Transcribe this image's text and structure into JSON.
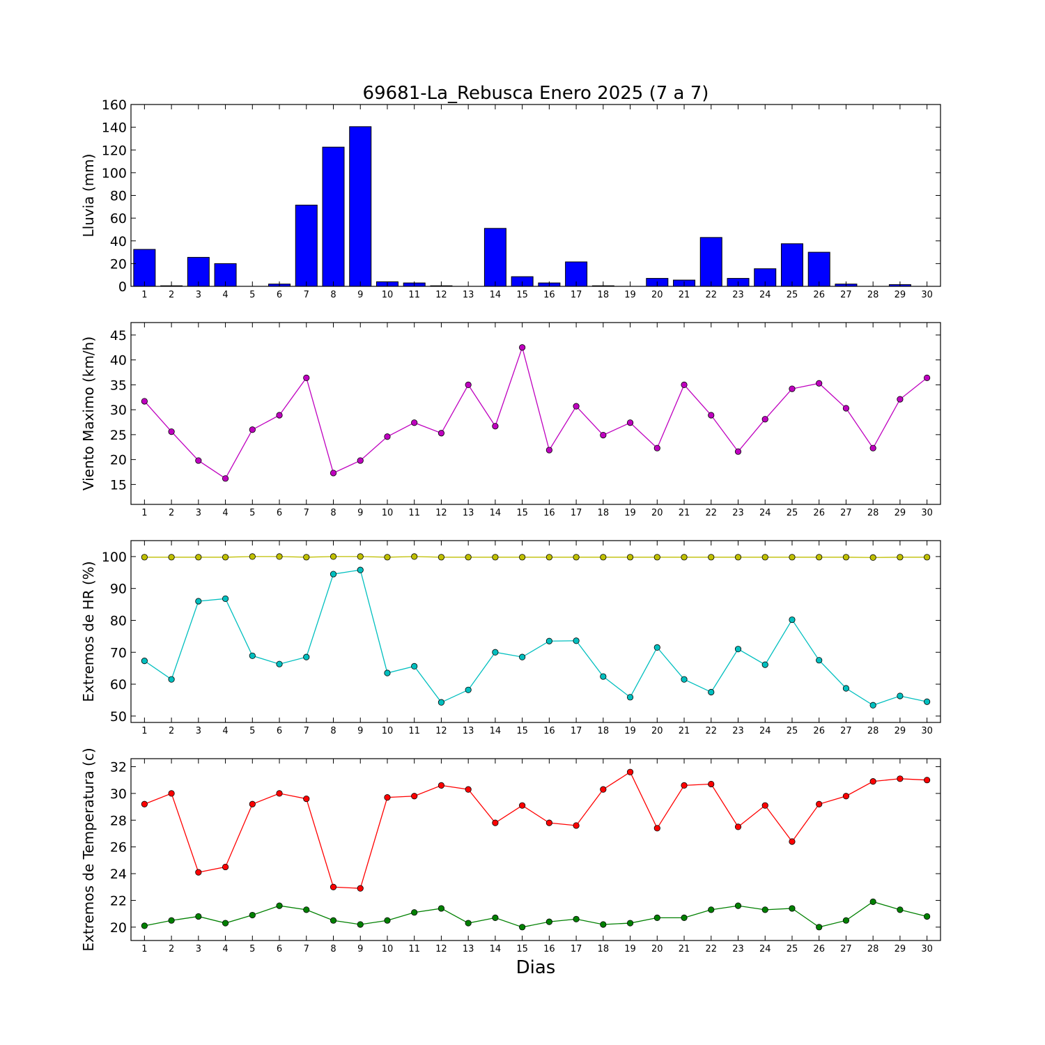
{
  "title": "69681-La_Rebusca Enero 2025  (7 a 7)",
  "xlabel": "Dias",
  "colors": {
    "rain": "#0000ff",
    "wind": "#bf00bf",
    "hr_max": "#bfbf00",
    "hr_min": "#00bfbf",
    "temp_max": "#ff0000",
    "temp_min": "#008000"
  },
  "chart_data": [
    {
      "type": "bar",
      "ylabel": "Lluvia (mm)",
      "ylim": [
        0,
        160
      ],
      "yticks": [
        0,
        20,
        40,
        60,
        80,
        100,
        120,
        140,
        160
      ],
      "x": [
        1,
        2,
        3,
        4,
        5,
        6,
        7,
        8,
        9,
        10,
        11,
        12,
        13,
        14,
        15,
        16,
        17,
        18,
        19,
        20,
        21,
        22,
        23,
        24,
        25,
        26,
        27,
        28,
        29,
        30
      ],
      "series": [
        {
          "values": [
            32.5,
            0.5,
            25.5,
            20,
            0,
            2,
            71.5,
            122.5,
            140.5,
            4,
            3,
            0.5,
            0,
            51,
            8.5,
            3,
            21.5,
            0.5,
            0,
            7,
            5.5,
            43,
            7,
            15.5,
            37.5,
            30,
            2,
            0,
            1.5,
            0
          ]
        }
      ]
    },
    {
      "type": "line",
      "ylabel": "Viento Maximo (km/h)",
      "ylim": [
        11,
        47.5
      ],
      "yticks": [
        15,
        20,
        25,
        30,
        35,
        40,
        45
      ],
      "x": [
        1,
        2,
        3,
        4,
        5,
        6,
        7,
        8,
        9,
        10,
        11,
        12,
        13,
        14,
        15,
        16,
        17,
        18,
        19,
        20,
        21,
        22,
        23,
        24,
        25,
        26,
        27,
        28,
        29,
        30
      ],
      "series": [
        {
          "values": [
            31.7,
            25.6,
            19.8,
            16.2,
            26,
            28.9,
            36.4,
            17.3,
            19.8,
            24.6,
            27.4,
            25.3,
            35,
            26.7,
            42.5,
            21.9,
            30.7,
            24.9,
            27.4,
            22.3,
            35,
            28.9,
            21.6,
            28.1,
            34.2,
            35.3,
            30.3,
            22.3,
            32.1,
            36.4
          ]
        }
      ]
    },
    {
      "type": "line",
      "ylabel": "Extremos de HR (%)",
      "ylim": [
        48,
        105
      ],
      "yticks": [
        50,
        60,
        70,
        80,
        90,
        100
      ],
      "x": [
        1,
        2,
        3,
        4,
        5,
        6,
        7,
        8,
        9,
        10,
        11,
        12,
        13,
        14,
        15,
        16,
        17,
        18,
        19,
        20,
        21,
        22,
        23,
        24,
        25,
        26,
        27,
        28,
        29,
        30
      ],
      "series": [
        {
          "values": [
            99.8,
            99.8,
            99.8,
            99.8,
            100,
            100,
            99.8,
            100,
            100,
            99.8,
            100,
            99.8,
            99.8,
            99.8,
            99.8,
            99.8,
            99.8,
            99.8,
            99.8,
            99.8,
            99.8,
            99.8,
            99.8,
            99.8,
            99.8,
            99.8,
            99.8,
            99.7,
            99.8,
            99.8
          ]
        },
        {
          "values": [
            67.3,
            61.5,
            86,
            86.8,
            68.9,
            66.3,
            68.5,
            94.5,
            95.8,
            63.5,
            65.6,
            54.3,
            58.2,
            70,
            68.5,
            73.5,
            73.6,
            62.4,
            55.9,
            71.5,
            61.5,
            57.5,
            71,
            66.1,
            80.2,
            67.5,
            58.7,
            53.4,
            56.3,
            54.5
          ]
        }
      ]
    },
    {
      "type": "line",
      "ylabel": "Extremos de Temperatura (c)",
      "ylim": [
        19,
        32.6
      ],
      "yticks": [
        20,
        22,
        24,
        26,
        28,
        30,
        32
      ],
      "x": [
        1,
        2,
        3,
        4,
        5,
        6,
        7,
        8,
        9,
        10,
        11,
        12,
        13,
        14,
        15,
        16,
        17,
        18,
        19,
        20,
        21,
        22,
        23,
        24,
        25,
        26,
        27,
        28,
        29,
        30
      ],
      "series": [
        {
          "values": [
            29.2,
            30,
            24.1,
            24.5,
            29.2,
            30,
            29.6,
            23,
            22.9,
            29.7,
            29.8,
            30.6,
            30.3,
            27.8,
            29.1,
            27.8,
            27.6,
            30.3,
            31.6,
            27.4,
            30.6,
            30.7,
            27.5,
            29.1,
            26.4,
            29.2,
            29.8,
            30.9,
            31.1,
            31
          ]
        },
        {
          "values": [
            20.1,
            20.5,
            20.8,
            20.3,
            20.9,
            21.6,
            21.3,
            20.5,
            20.2,
            20.5,
            21.1,
            21.4,
            20.3,
            20.7,
            20,
            20.4,
            20.6,
            20.2,
            20.3,
            20.7,
            20.7,
            21.3,
            21.6,
            21.3,
            21.4,
            20,
            20.5,
            21.9,
            21.3,
            20.8
          ]
        }
      ]
    }
  ]
}
